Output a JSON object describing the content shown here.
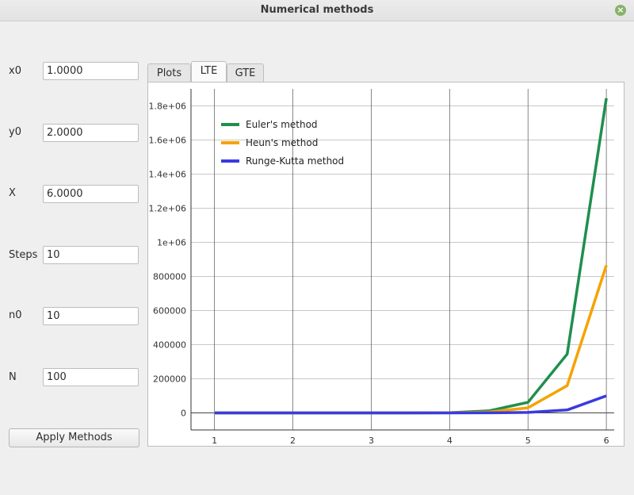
{
  "window": {
    "title": "Numerical methods"
  },
  "fields": [
    {
      "label": "x0",
      "value": "1.0000"
    },
    {
      "label": "y0",
      "value": "2.0000"
    },
    {
      "label": "X",
      "value": "6.0000"
    },
    {
      "label": "Steps",
      "value": "10"
    },
    {
      "label": "n0",
      "value": "10"
    },
    {
      "label": "N",
      "value": "100"
    }
  ],
  "apply_button": "Apply Methods",
  "tabs": [
    {
      "label": "Plots",
      "active": false
    },
    {
      "label": "LTE",
      "active": true
    },
    {
      "label": "GTE",
      "active": false
    }
  ],
  "chart_data": {
    "type": "line",
    "title": "",
    "xlabel": "",
    "ylabel": "",
    "xlim": [
      0.7,
      6.1
    ],
    "ylim": [
      -100000,
      1900000
    ],
    "x_ticks": [
      1,
      2,
      3,
      4,
      5,
      6
    ],
    "y_ticks": [
      0,
      200000,
      400000,
      600000,
      800000,
      1000000,
      1200000,
      1400000,
      1600000,
      1800000
    ],
    "y_tick_labels": [
      "0",
      "200000",
      "400000",
      "600000",
      "800000",
      "1e+06",
      "1.2e+06",
      "1.4e+06",
      "1.6e+06",
      "1.8e+06"
    ],
    "grid": true,
    "legend_position": "top-left",
    "x": [
      1.0,
      1.5,
      2.0,
      2.5,
      3.0,
      3.5,
      4.0,
      4.5,
      5.0,
      5.5,
      6.0
    ],
    "series": [
      {
        "name": "Euler's method",
        "color": "#1f8f4e",
        "values": [
          0,
          0,
          0,
          0,
          0,
          200,
          1500,
          12000,
          62000,
          345000,
          1845000
        ]
      },
      {
        "name": "Heun's method",
        "color": "#f5a300",
        "values": [
          0,
          0,
          0,
          0,
          0,
          100,
          600,
          5000,
          30000,
          160000,
          865000
        ]
      },
      {
        "name": "Runge-Kutta method",
        "color": "#3a3ae0",
        "values": [
          0,
          0,
          0,
          0,
          0,
          0,
          100,
          600,
          3000,
          17000,
          100000
        ]
      }
    ]
  }
}
